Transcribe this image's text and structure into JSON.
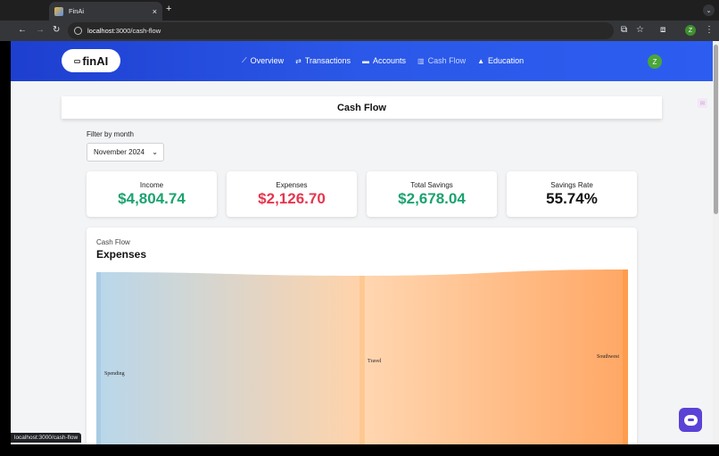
{
  "browser": {
    "tab_title": "FinAi",
    "tab_close": "×",
    "new_tab": "+",
    "url_host": "localhost",
    "url_rest": ":3000/cash-flow",
    "status_url": "localhost:3000/cash-flow",
    "profile_initial": "Z"
  },
  "header": {
    "logo_text": "finAI",
    "nav": [
      {
        "label": "Overview",
        "icon": "chart-line-icon"
      },
      {
        "label": "Transactions",
        "icon": "arrows-exchange-icon"
      },
      {
        "label": "Accounts",
        "icon": "wallet-icon"
      },
      {
        "label": "Cash Flow",
        "icon": "chart-bar-icon"
      },
      {
        "label": "Education",
        "icon": "graduation-cap-icon"
      }
    ],
    "active": "Cash Flow",
    "user_initial": "Z"
  },
  "page": {
    "title": "Cash Flow",
    "filter_label": "Filter by month",
    "month_value": "November 2024"
  },
  "stats": [
    {
      "label": "Income",
      "value": "$4,804.74",
      "color": "#1aa36f"
    },
    {
      "label": "Expenses",
      "value": "$2,126.70",
      "color": "#e5364f"
    },
    {
      "label": "Total Savings",
      "value": "$2,678.04",
      "color": "#1aa36f"
    },
    {
      "label": "Savings Rate",
      "value": "55.74%",
      "color": "#111111"
    }
  ],
  "chart": {
    "subtitle": "Cash Flow",
    "title": "Expenses",
    "nodes": [
      "Spending",
      "Travel",
      "Southwest"
    ],
    "colors": {
      "start": "#b9d7ea",
      "end": "#ffa866",
      "node": "#ff9d4d"
    }
  }
}
